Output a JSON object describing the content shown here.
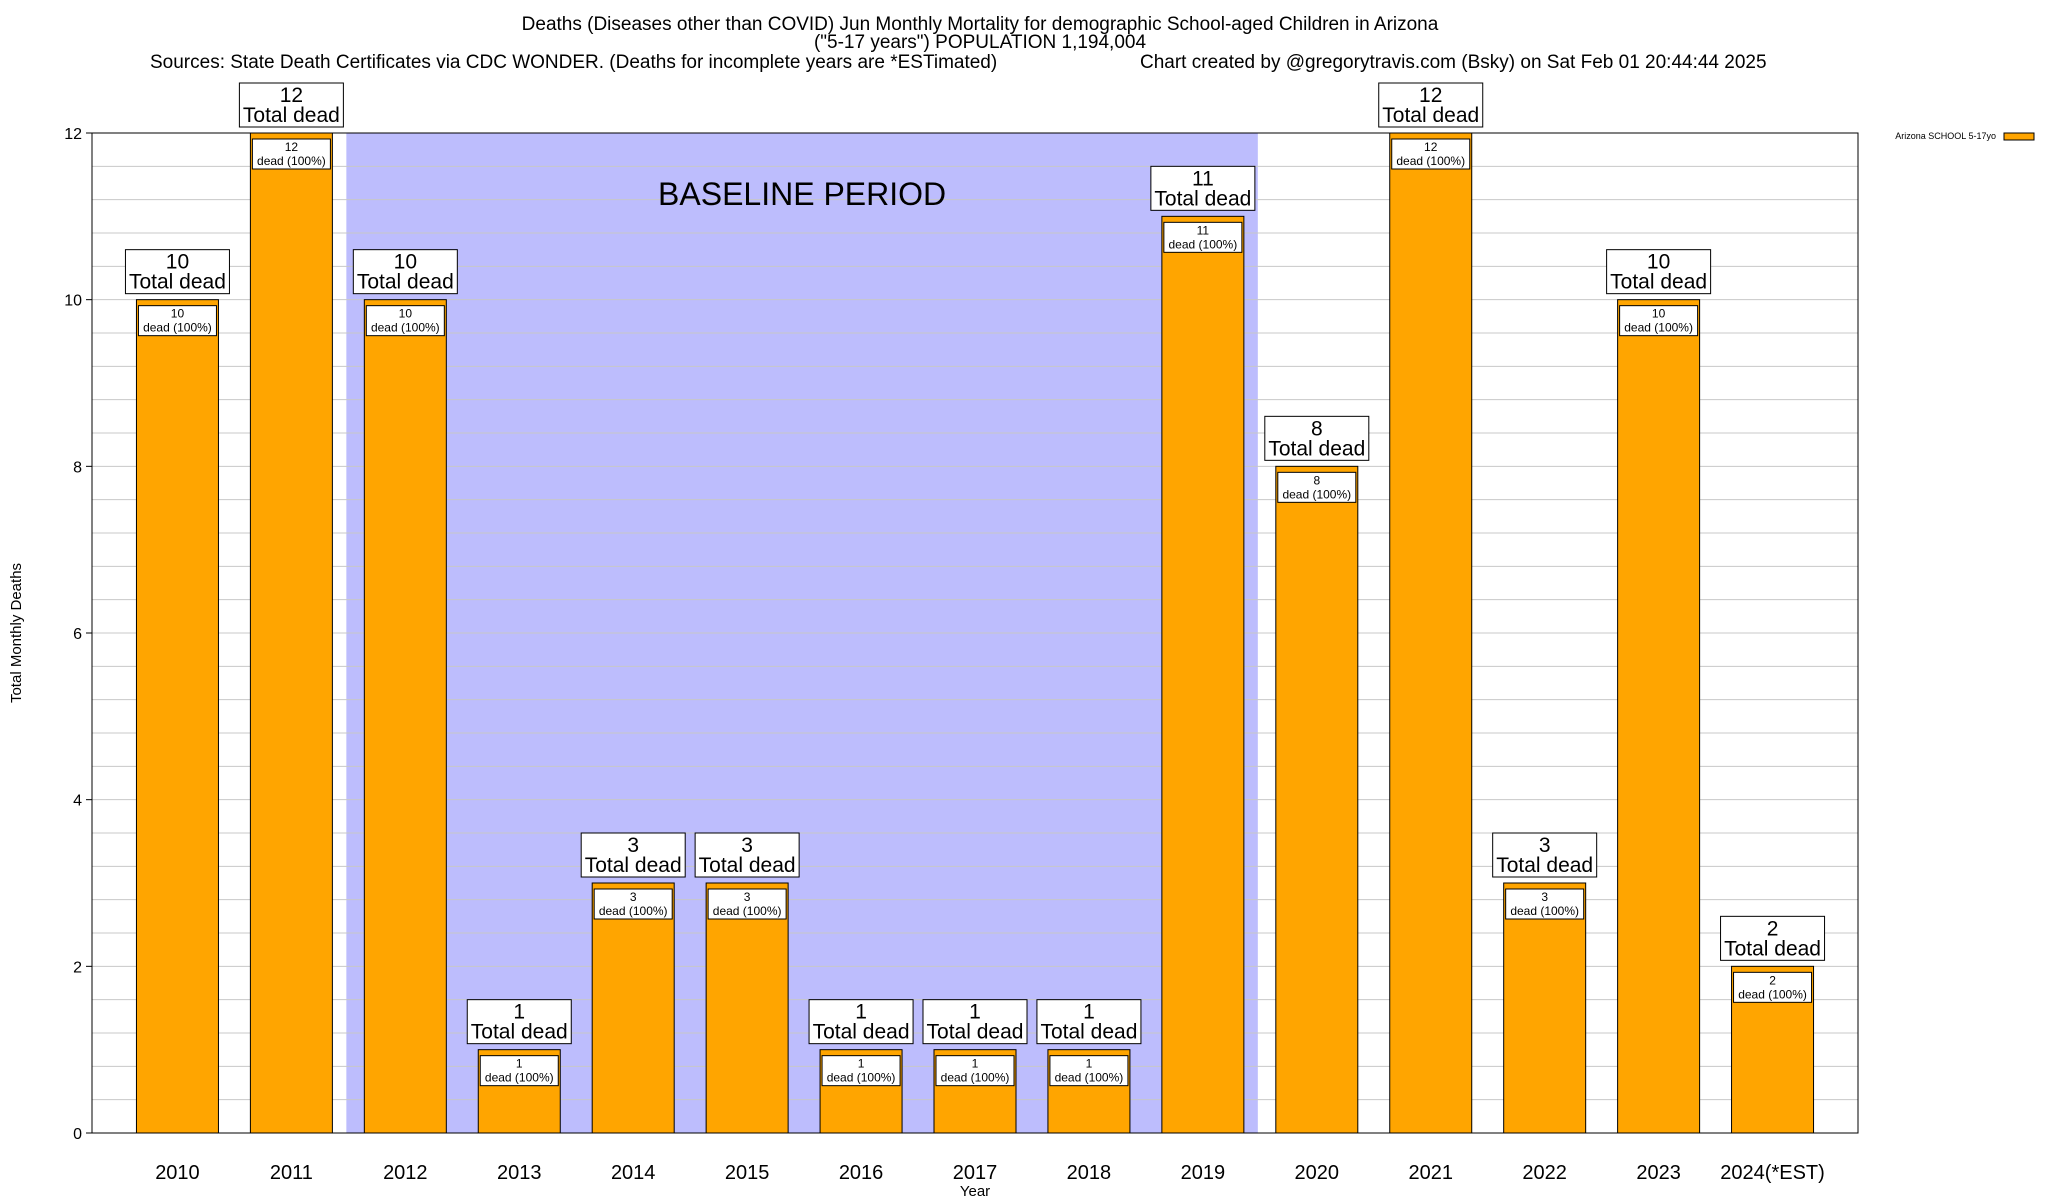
{
  "header": {
    "title_line1": "Deaths (Diseases other than COVID) Jun Monthly Mortality for demographic School-aged Children in Arizona",
    "title_line2": "(\"5-17 years\") POPULATION 1,194,004",
    "sources": "Sources: State Death Certificates via CDC WONDER. (Deaths for incomplete years are *ESTimated)",
    "credit": "Chart created by @gregorytravis.com (Bsky) on Sat Feb 01 20:44:44 2025"
  },
  "colors": {
    "bar_fill": "#FFA500",
    "bar_stroke": "#000000",
    "baseline_shade": "#BDBDFD",
    "grid": "#C8C8C8"
  },
  "chart_data": {
    "type": "bar",
    "categories": [
      "2010",
      "2011",
      "2012",
      "2013",
      "2014",
      "2015",
      "2016",
      "2017",
      "2018",
      "2019",
      "2020",
      "2021",
      "2022",
      "2023",
      "2024(*EST)"
    ],
    "series": [
      {
        "name": "Arizona SCHOOL 5-17yo",
        "values": [
          10,
          12,
          10,
          1,
          3,
          3,
          1,
          1,
          1,
          11,
          8,
          12,
          3,
          10,
          2
        ]
      }
    ],
    "xlabel": "Year",
    "ylabel": "Total Monthly Deaths",
    "ylim": [
      0,
      12
    ],
    "yticks": [
      0,
      2,
      4,
      6,
      8,
      10,
      12
    ],
    "minor_grid_step": 0.4,
    "grid": true,
    "legend_position": "top-right",
    "total_label_suffix": "Total dead",
    "inner_label_suffix": "dead (100%)",
    "baseline_period": {
      "label": "BASELINE PERIOD",
      "from": "2012",
      "to": "2019"
    }
  }
}
